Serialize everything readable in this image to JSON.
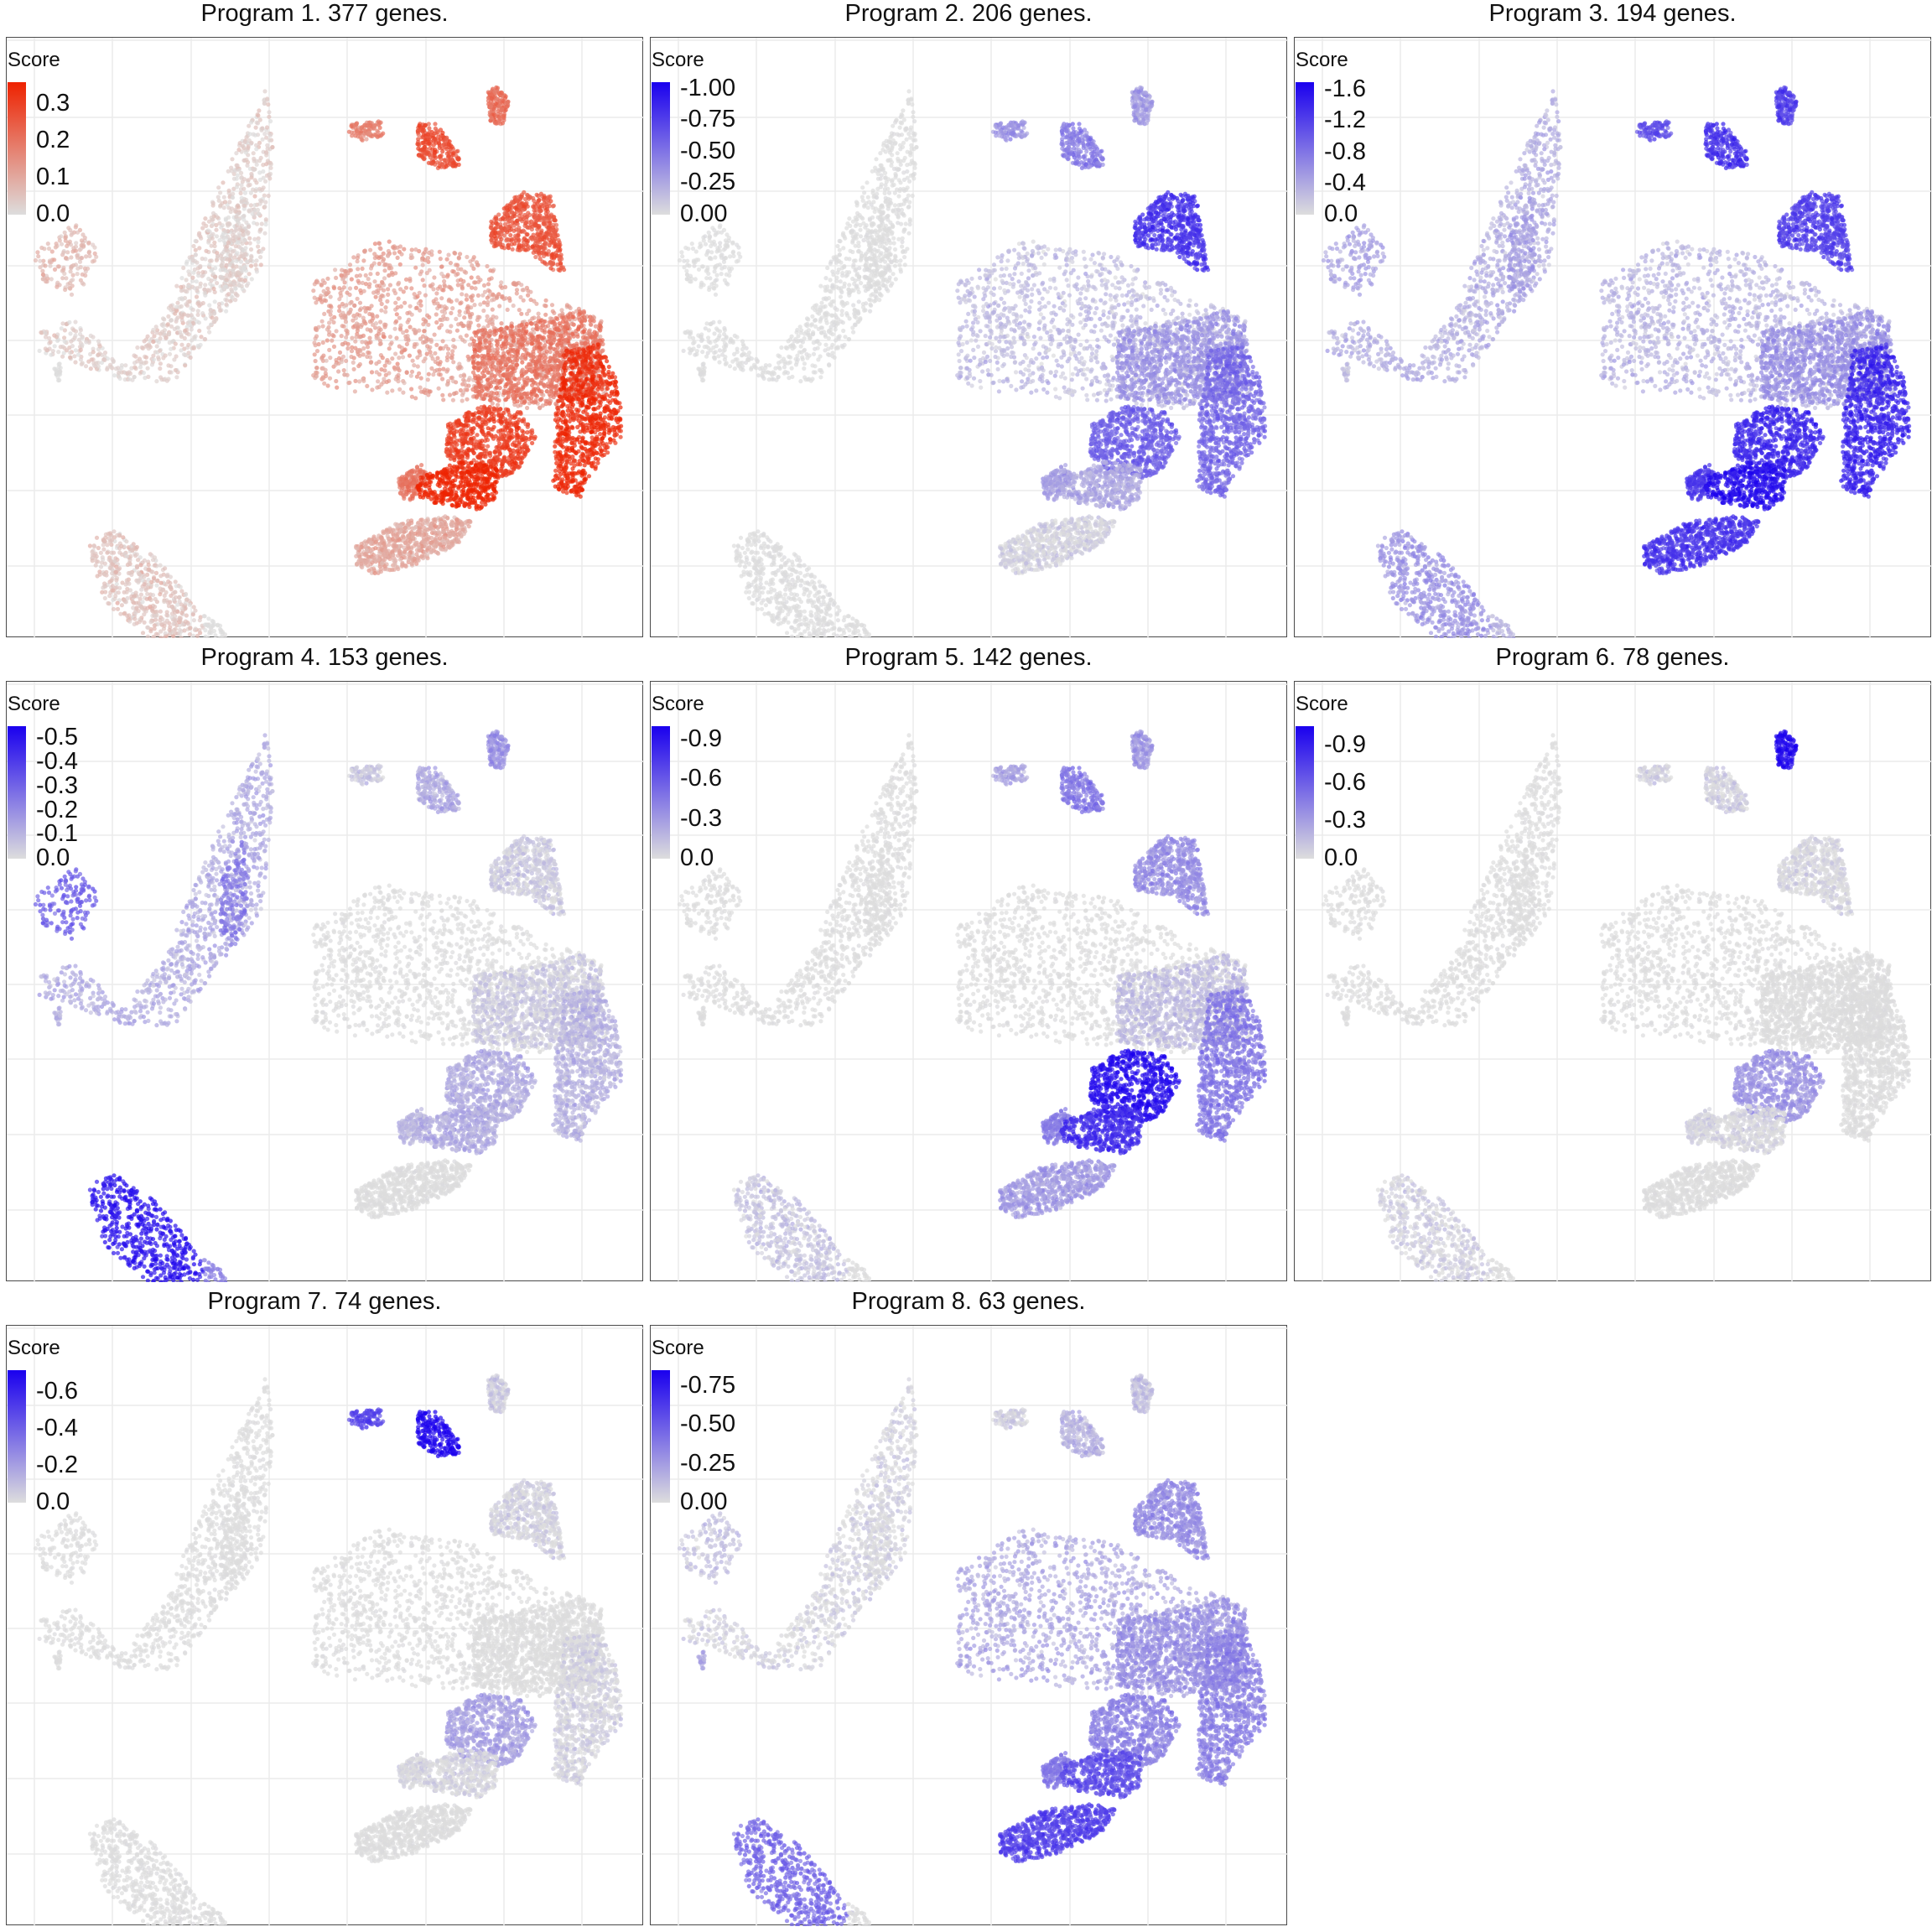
{
  "chart_data": [
    {
      "type": "scatter",
      "title": "Program 1. 377 genes.",
      "legend_title": "Score",
      "legend_position": "top-left",
      "grid": true,
      "low_color": "#dddddd",
      "high_color": "#ee2200",
      "color_range": [
        0.0,
        0.36
      ],
      "legend_ticks": [
        "0.3",
        "0.2",
        "0.1",
        "0.0"
      ],
      "tick_values": [
        0.3,
        0.2,
        0.1,
        0.0
      ],
      "hot_clusters": {
        "TL": 0.03,
        "TLc": 0.02,
        "TLd": 0.07,
        "BL1": 0.05,
        "BL2": 0.0,
        "EF": 0.12,
        "EFr": 0.2,
        "EE": 0.26,
        "EN": 0.34,
        "N1": 0.18,
        "N2": 0.28,
        "N3": 0.22,
        "R1": 0.3,
        "R2": 0.2,
        "H": 0.36,
        "BC": 0.1,
        "BB": 0.14,
        "P": 0.0
      }
    },
    {
      "type": "scatter",
      "title": "Program 2. 206 genes.",
      "legend_title": "Score",
      "legend_position": "top-left",
      "grid": true,
      "low_color": "#dddddd",
      "high_color": "#1a00ee",
      "color_range": [
        0.0,
        -1.05
      ],
      "legend_ticks": [
        "0.00",
        "-0.25",
        "-0.50",
        "-0.75",
        "-1.00"
      ],
      "tick_values": [
        0.0,
        -0.25,
        -0.5,
        -0.75,
        -1.0
      ],
      "hot_clusters": {
        "TL": 0.0,
        "TLc": 0.0,
        "TLd": 0.0,
        "BL1": 0.0,
        "BL2": 0.0,
        "EF": -0.15,
        "EFr": -0.35,
        "EE": -0.8,
        "EN": -0.55,
        "N1": -0.35,
        "N2": -0.45,
        "N3": -0.3,
        "R1": -0.6,
        "R2": -0.3,
        "H": -0.25,
        "BC": -0.05,
        "BB": -0.02,
        "P": 0.0
      }
    },
    {
      "type": "scatter",
      "title": "Program 3. 194 genes.",
      "legend_title": "Score",
      "legend_position": "top-left",
      "grid": true,
      "low_color": "#dddddd",
      "high_color": "#1a00ee",
      "color_range": [
        0.0,
        -1.7
      ],
      "legend_ticks": [
        "0.0",
        "-0.4",
        "-0.8",
        "-1.2",
        "-1.6"
      ],
      "tick_values": [
        0.0,
        -0.4,
        -0.8,
        -1.2,
        -1.6
      ],
      "hot_clusters": {
        "TL": -0.35,
        "TLc": -0.5,
        "TLd": -0.45,
        "BL1": -0.55,
        "BL2": -0.3,
        "EF": -0.3,
        "EFr": -0.6,
        "EE": -1.2,
        "EN": -1.4,
        "N1": -1.1,
        "N2": -1.3,
        "N3": -1.2,
        "R1": -1.4,
        "R2": -1.3,
        "H": -1.6,
        "BC": -1.3,
        "BB": -1.6,
        "P": -0.2
      }
    },
    {
      "type": "scatter",
      "title": "Program 4. 153 genes.",
      "legend_title": "Score",
      "legend_position": "top-left",
      "grid": true,
      "low_color": "#dddddd",
      "high_color": "#1a00ee",
      "color_range": [
        0.0,
        -0.55
      ],
      "legend_ticks": [
        "0.0",
        "-0.1",
        "-0.2",
        "-0.3",
        "-0.4",
        "-0.5"
      ],
      "tick_values": [
        0.0,
        -0.1,
        -0.2,
        -0.3,
        -0.4,
        -0.5
      ],
      "hot_clusters": {
        "TL": -0.12,
        "TLc": -0.25,
        "TLd": -0.32,
        "BL1": -0.5,
        "BL2": -0.22,
        "EF": 0.0,
        "EFr": -0.05,
        "EE": -0.04,
        "EN": -0.1,
        "N1": -0.05,
        "N2": -0.12,
        "N3": -0.18,
        "R1": -0.12,
        "R2": -0.1,
        "H": -0.12,
        "BC": 0.0,
        "BB": 0.0,
        "P": -0.1
      }
    },
    {
      "type": "scatter",
      "title": "Program 5. 142 genes.",
      "legend_title": "Score",
      "legend_position": "top-left",
      "grid": true,
      "low_color": "#dddddd",
      "high_color": "#1a00ee",
      "color_range": [
        0.0,
        -1.0
      ],
      "legend_ticks": [
        "0.0",
        "-0.3",
        "-0.6",
        "-0.9"
      ],
      "tick_values": [
        0.0,
        -0.3,
        -0.6,
        -0.9
      ],
      "hot_clusters": {
        "TL": 0.0,
        "TLc": 0.0,
        "TLd": 0.0,
        "BL1": -0.1,
        "BL2": 0.0,
        "EF": 0.0,
        "EFr": -0.15,
        "EE": -0.35,
        "EN": -0.45,
        "N1": -0.25,
        "N2": -0.45,
        "N3": -0.3,
        "R1": -0.95,
        "R2": -0.45,
        "H": -0.8,
        "BC": -0.3,
        "BB": -0.05,
        "P": 0.0
      }
    },
    {
      "type": "scatter",
      "title": "Program 6. 78 genes.",
      "legend_title": "Score",
      "legend_position": "top-left",
      "grid": true,
      "low_color": "#dddddd",
      "high_color": "#1a00ee",
      "color_range": [
        0.0,
        -1.05
      ],
      "legend_ticks": [
        "0.0",
        "-0.3",
        "-0.6",
        "-0.9"
      ],
      "tick_values": [
        0.0,
        -0.3,
        -0.6,
        -0.9
      ],
      "hot_clusters": {
        "TL": 0.0,
        "TLc": 0.0,
        "TLd": 0.0,
        "BL1": -0.05,
        "BL2": 0.0,
        "EF": 0.0,
        "EFr": 0.0,
        "EE": -0.02,
        "EN": 0.0,
        "N1": -0.05,
        "N2": -0.05,
        "N3": -1.0,
        "R1": -0.35,
        "R2": -0.05,
        "H": -0.02,
        "BC": 0.0,
        "BB": 0.0,
        "P": 0.0
      }
    },
    {
      "type": "scatter",
      "title": "Program 7. 74 genes.",
      "legend_title": "Score",
      "legend_position": "top-left",
      "grid": true,
      "low_color": "#dddddd",
      "high_color": "#1a00ee",
      "color_range": [
        0.0,
        -0.72
      ],
      "legend_ticks": [
        "0.0",
        "-0.2",
        "-0.4",
        "-0.6"
      ],
      "tick_values": [
        0.0,
        -0.2,
        -0.4,
        -0.6
      ],
      "hot_clusters": {
        "TL": 0.0,
        "TLc": 0.0,
        "TLd": 0.0,
        "BL1": 0.0,
        "BL2": 0.0,
        "EF": 0.0,
        "EFr": 0.0,
        "EE": -0.03,
        "EN": -0.03,
        "N1": -0.5,
        "N2": -0.7,
        "N3": -0.05,
        "R1": -0.2,
        "R2": -0.02,
        "H": -0.02,
        "BC": 0.0,
        "BB": 0.0,
        "P": 0.0
      }
    },
    {
      "type": "scatter",
      "title": "Program 8. 63 genes.",
      "legend_title": "Score",
      "legend_position": "top-left",
      "grid": true,
      "low_color": "#dddddd",
      "high_color": "#1a00ee",
      "color_range": [
        0.0,
        -0.85
      ],
      "legend_ticks": [
        "0.00",
        "-0.25",
        "-0.50",
        "-0.75"
      ],
      "tick_values": [
        0.0,
        -0.25,
        -0.5,
        -0.75
      ],
      "hot_clusters": {
        "TL": -0.03,
        "TLc": -0.02,
        "TLd": -0.1,
        "BL1": -0.45,
        "BL2": 0.0,
        "EF": -0.2,
        "EFr": -0.3,
        "EE": -0.3,
        "EN": -0.35,
        "N1": -0.05,
        "N2": -0.15,
        "N3": -0.1,
        "R1": -0.35,
        "R2": -0.4,
        "H": -0.55,
        "BC": -0.6,
        "BB": -0.35,
        "P": -0.2
      }
    }
  ]
}
